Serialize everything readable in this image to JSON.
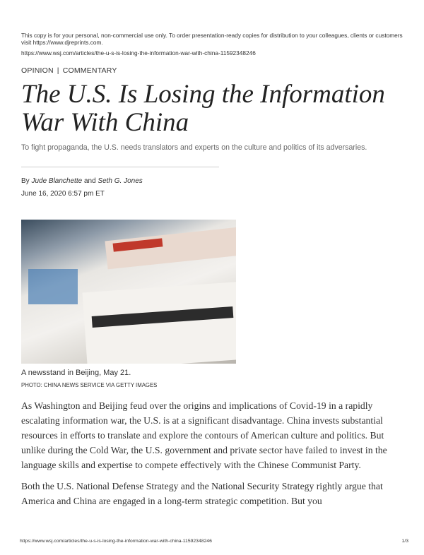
{
  "header": {
    "notice": "This copy is for your personal, non-commercial use only. To order presentation-ready copies for distribution to your colleagues, clients or customers visit https://www.djreprints.com.",
    "url": "https://www.wsj.com/articles/the-u-s-is-losing-the-information-war-with-china-11592348246"
  },
  "article": {
    "section": "OPINION",
    "subsection": "COMMENTARY",
    "section_separator": "|",
    "title": "The U.S. Is Losing the Information War With China",
    "dek": "To fight propaganda, the U.S. needs translators and experts on the culture and politics of its adversaries.",
    "byline_prefix": "By",
    "author1": "Jude Blanchette",
    "byline_and": "and",
    "author2": "Seth G. Jones",
    "date": "June 16, 2020 6:57 pm ET",
    "photo_caption": "A newsstand in Beijing, May 21.",
    "photo_credit": "PHOTO: CHINA NEWS SERVICE VIA GETTY IMAGES",
    "paragraphs": [
      "As Washington and Beijing feud over the origins and implications of Covid-19 in a rapidly escalating information war, the U.S. is at a significant disadvantage. China invests substantial resources in efforts to translate and explore the contours of American culture and politics. But unlike during the Cold War, the U.S. government and private sector have failed to invest in the language skills and expertise to compete effectively with the Chinese Communist Party.",
      "Both the U.S. National Defense Strategy and the National Security Strategy rightly argue that America and China are engaged in a long-term strategic competition. But you"
    ]
  },
  "footer": {
    "url": "https://www.wsj.com/articles/the-u-s-is-losing-the-information-war-with-china-11592348246",
    "page": "1/3"
  }
}
